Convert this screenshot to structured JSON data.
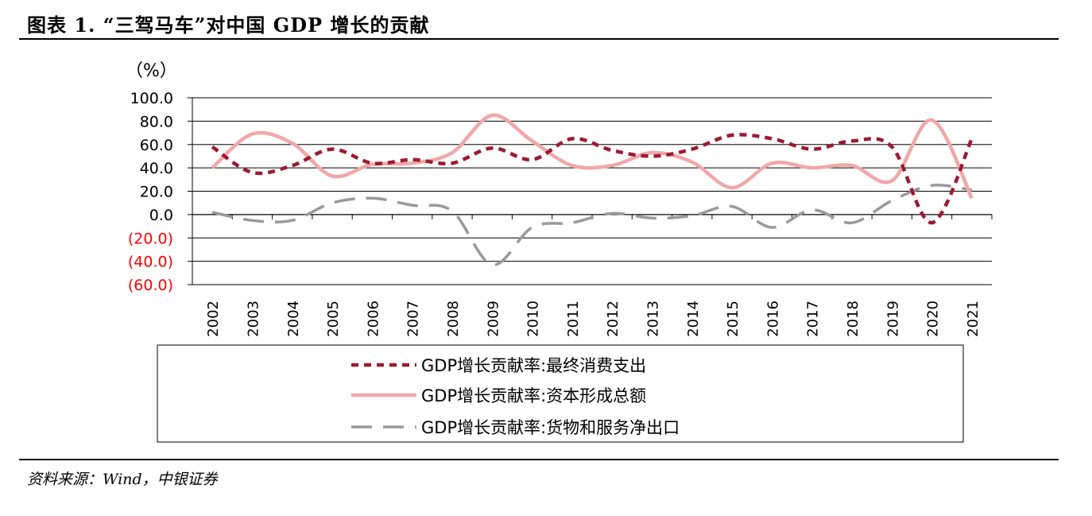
{
  "header": {
    "figure_title": "图表 1. “三驾马车”对中国 GDP 增长的贡献"
  },
  "footer": {
    "source": "资料来源：Wind，中银证券"
  },
  "chart_data": {
    "type": "line",
    "unit_label": "（%）",
    "ylim": [
      -60,
      100
    ],
    "y_ticks": [
      100,
      80,
      60,
      40,
      20,
      0,
      -20,
      -40,
      -60
    ],
    "y_tick_labels": [
      "100.0",
      "80.0",
      "60.0",
      "40.0",
      "20.0",
      "0.0",
      "(20.0)",
      "(40.0)",
      "(60.0)"
    ],
    "negative_tick_color": "#ff0000",
    "grid": true,
    "legend_position": "bottom",
    "categories": [
      "2002",
      "2003",
      "2004",
      "2005",
      "2006",
      "2007",
      "2008",
      "2009",
      "2010",
      "2011",
      "2012",
      "2013",
      "2014",
      "2015",
      "2016",
      "2017",
      "2018",
      "2019",
      "2020",
      "2021"
    ],
    "series": [
      {
        "name": "GDP增长贡献率:最终消费支出",
        "color": "#9b1b30",
        "style": "short-dash",
        "values": [
          58,
          36,
          42,
          56,
          44,
          47,
          44,
          57,
          47,
          65,
          55,
          50,
          56,
          68,
          65,
          56,
          63,
          58,
          -7,
          65
        ]
      },
      {
        "name": "GDP增长贡献率:资本形成总额",
        "color": "#f2a7a7",
        "style": "solid",
        "values": [
          40,
          69,
          61,
          33,
          43,
          44,
          53,
          85,
          63,
          42,
          42,
          53,
          45,
          23,
          44,
          40,
          42,
          29,
          81,
          14
        ]
      },
      {
        "name": "GDP增长贡献率:货物和服务净出口",
        "color": "#999999",
        "style": "long-dash",
        "values": [
          2,
          -5,
          -5,
          10,
          14,
          8,
          3,
          -43,
          -11,
          -7,
          1,
          -3,
          -1,
          7,
          -11,
          4,
          -7,
          12,
          25,
          21
        ]
      }
    ]
  }
}
